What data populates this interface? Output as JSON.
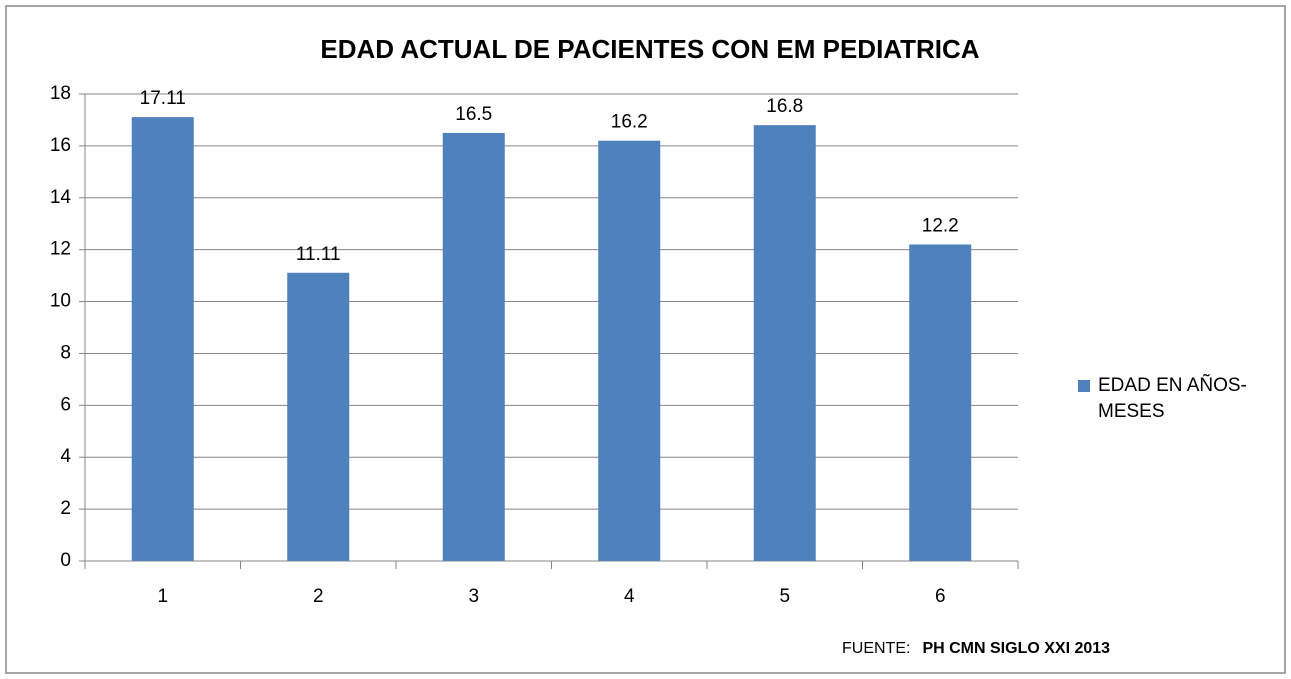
{
  "chart_data": {
    "type": "bar",
    "title": "EDAD  ACTUAL DE PACIENTES CON EM PEDIATRICA",
    "categories": [
      "1",
      "2",
      "3",
      "4",
      "5",
      "6"
    ],
    "series": [
      {
        "name": "EDAD EN AÑOS-MESES",
        "color": "#4f81bd",
        "values": [
          17.11,
          11.11,
          16.5,
          16.2,
          16.8,
          12.2
        ]
      }
    ],
    "ylim": [
      0,
      18
    ],
    "yticks": [
      0,
      2,
      4,
      6,
      8,
      10,
      12,
      14,
      16,
      18
    ],
    "grid": true,
    "legend": "right",
    "source_label": "FUENTE:",
    "source": "PH CMN  SIGLO XXI 2013"
  }
}
